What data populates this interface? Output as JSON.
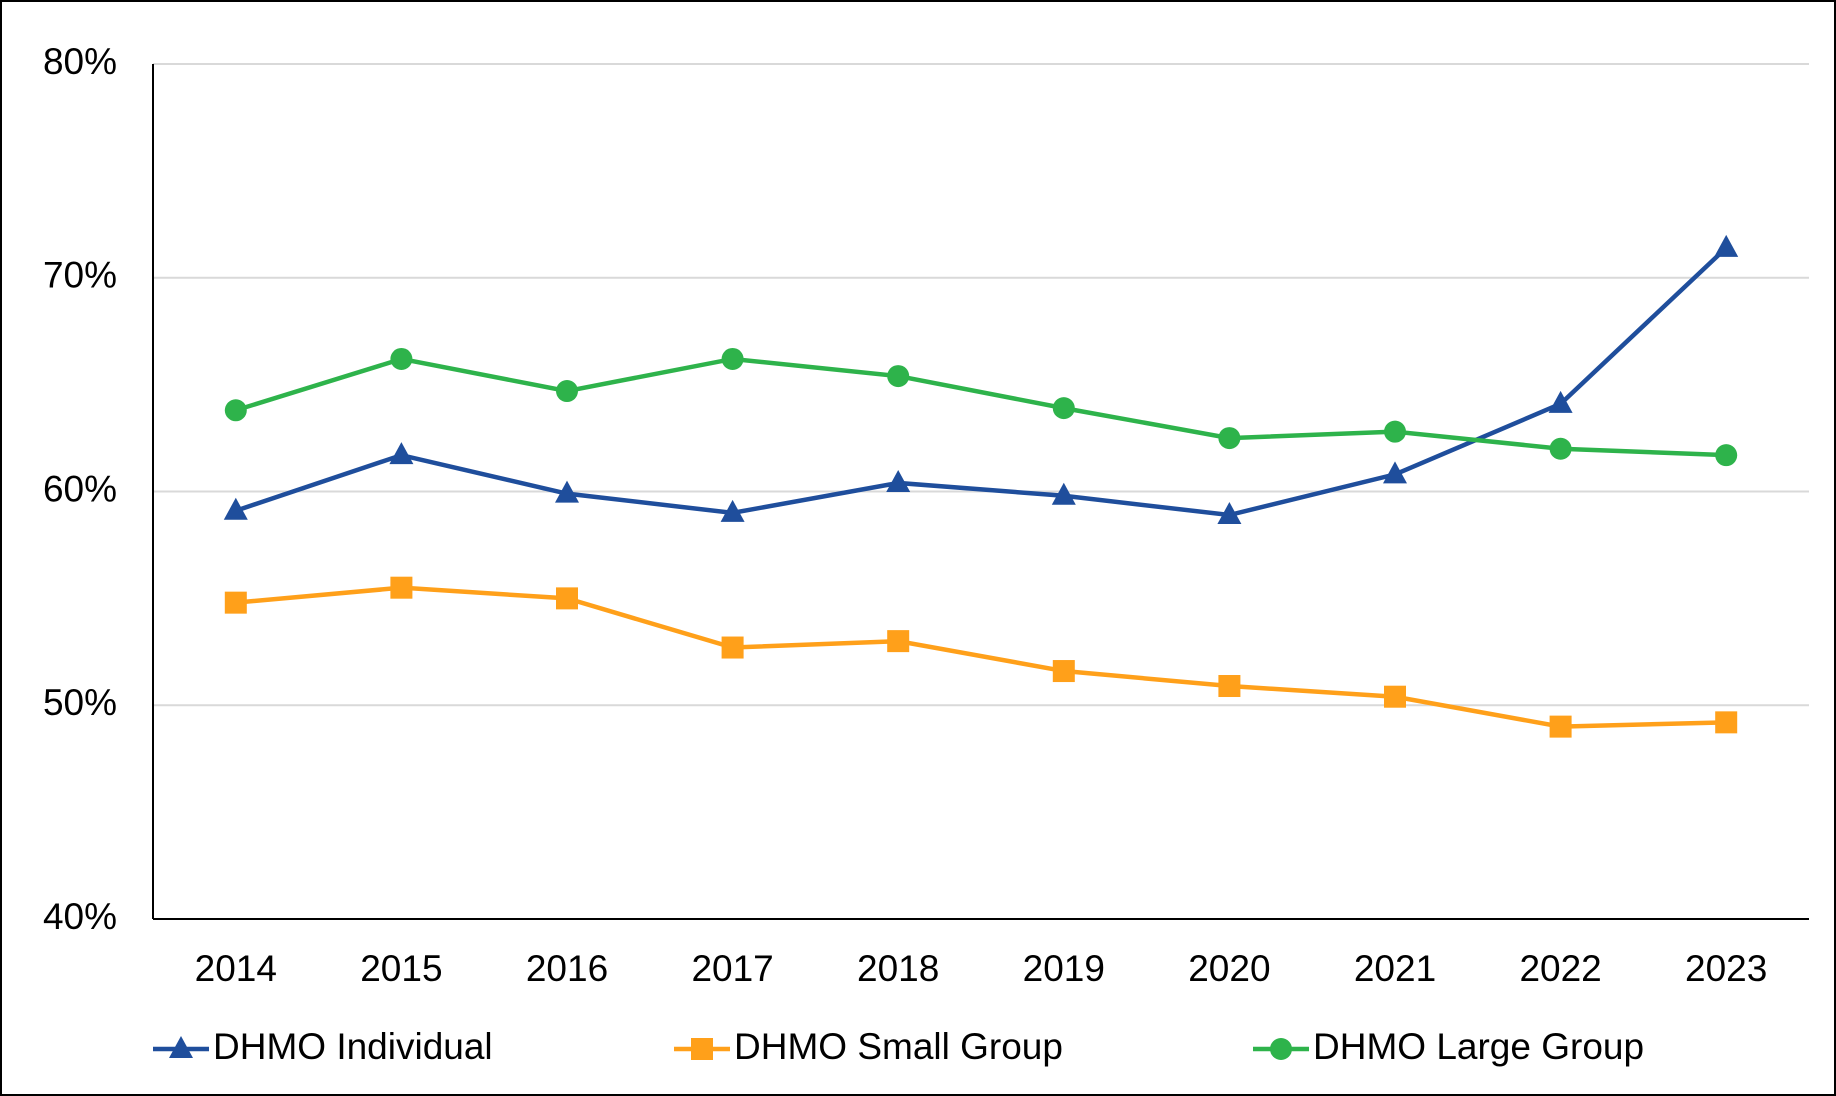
{
  "chart_data": {
    "type": "line",
    "categories": [
      "2014",
      "2015",
      "2016",
      "2017",
      "2018",
      "2019",
      "2020",
      "2021",
      "2022",
      "2023"
    ],
    "series": [
      {
        "name": "DHMO Individual",
        "color": "#1f4e9c",
        "marker": "triangle",
        "values": [
          59.1,
          61.7,
          59.9,
          59.0,
          60.4,
          59.8,
          58.9,
          60.8,
          64.1,
          71.4
        ]
      },
      {
        "name": "DHMO Small Group",
        "color": "#ffa01a",
        "marker": "square",
        "values": [
          54.8,
          55.5,
          55.0,
          52.7,
          53.0,
          51.6,
          50.9,
          50.4,
          49.0,
          49.2
        ]
      },
      {
        "name": "DHMO Large Group",
        "color": "#2eb34b",
        "marker": "circle",
        "values": [
          63.8,
          66.2,
          64.7,
          66.2,
          65.4,
          63.9,
          62.5,
          62.8,
          62.0,
          61.7
        ]
      }
    ],
    "ylim": [
      40,
      80
    ],
    "yticks": [
      {
        "value": 40,
        "label": "40%"
      },
      {
        "value": 50,
        "label": "50%"
      },
      {
        "value": 60,
        "label": "60%"
      },
      {
        "value": 70,
        "label": "70%"
      },
      {
        "value": 80,
        "label": "80%"
      }
    ],
    "grid": true,
    "legend": "bottom"
  }
}
